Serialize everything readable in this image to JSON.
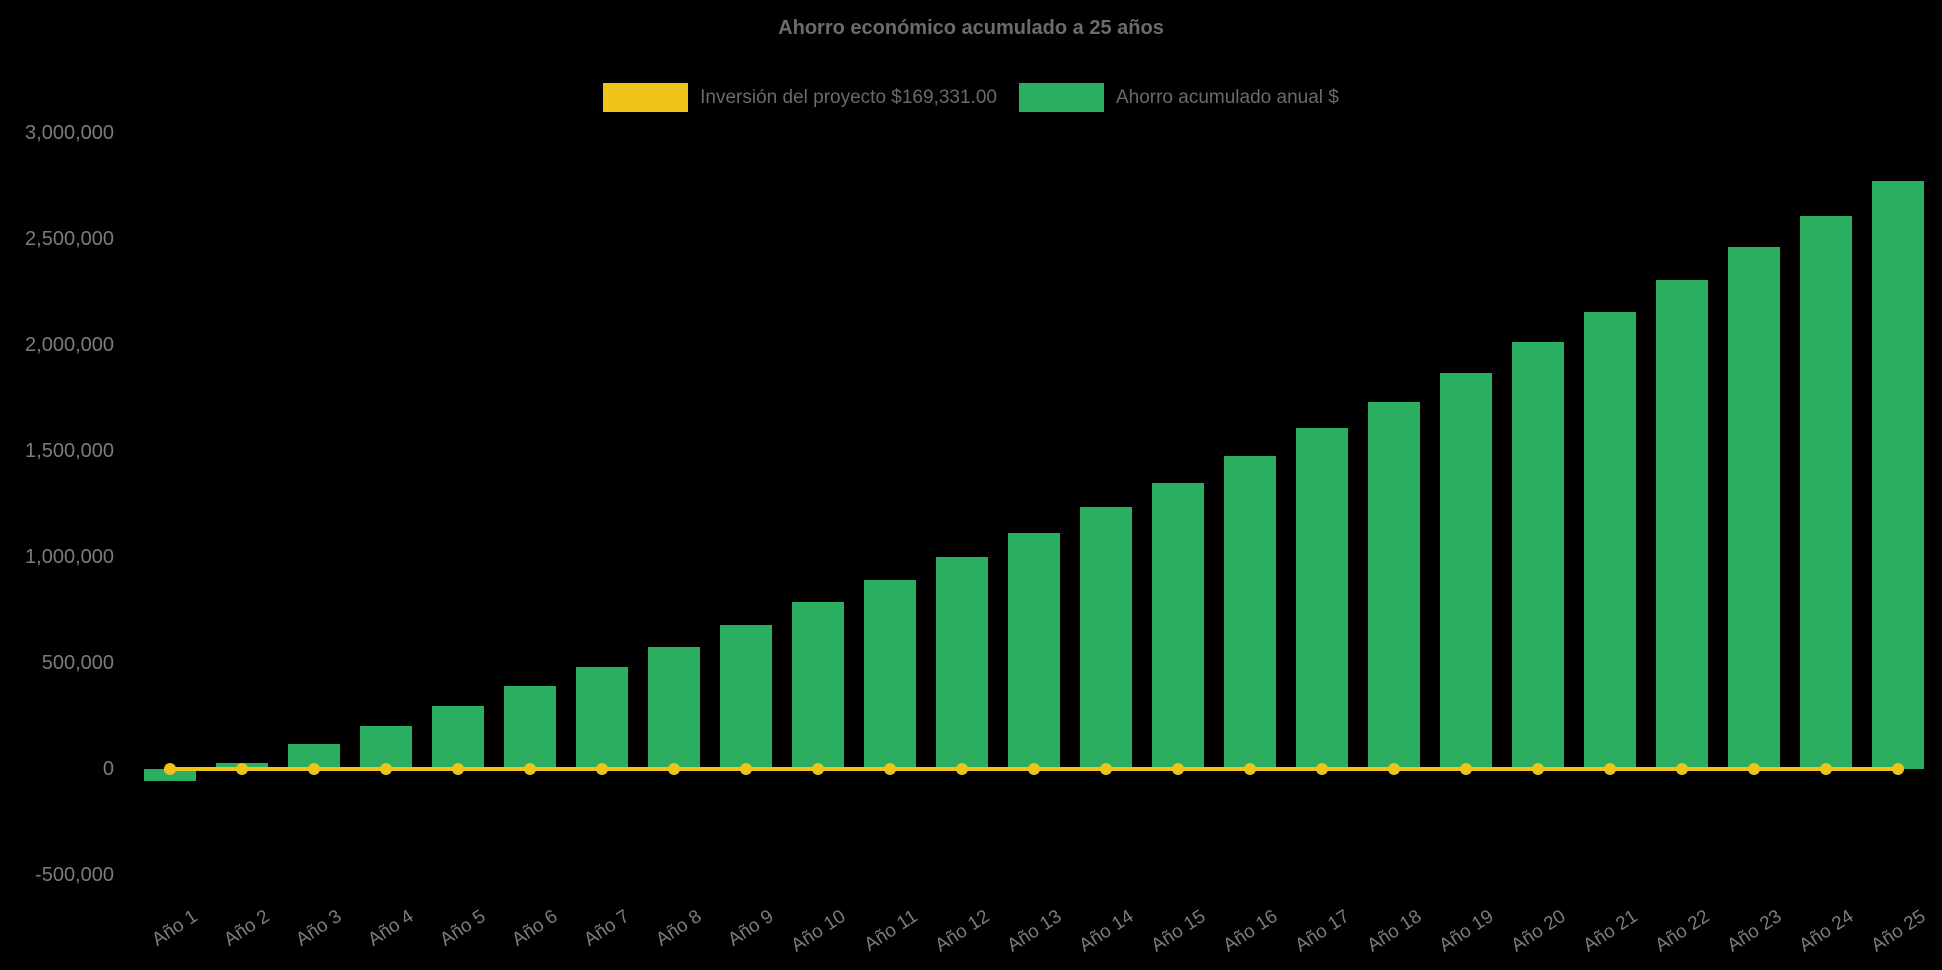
{
  "title": "Ahorro económico acumulado a 25 años",
  "colors": {
    "background": "#000000",
    "bar_green": "#2bae60",
    "line_yellow": "#efc31a",
    "title_text": "#6c6c6c",
    "legend_text": "#6a6a6a",
    "tick_text": "#7b7b7b"
  },
  "legend": [
    {
      "label": "Inversión del proyecto $169,331.00",
      "color": "#efc31a",
      "series": "line"
    },
    {
      "label": "Ahorro acumulado anual $",
      "color": "#2bae60",
      "series": "bar"
    }
  ],
  "chart_data": {
    "type": "bar",
    "title": "Ahorro económico acumulado a 25 años",
    "xlabel": "",
    "ylabel": "",
    "categories": [
      "Año 1",
      "Año 2",
      "Año 3",
      "Año 4",
      "Año 5",
      "Año 6",
      "Año 7",
      "Año 8",
      "Año 9",
      "Año 10",
      "Año 11",
      "Año 12",
      "Año 13",
      "Año 14",
      "Año 15",
      "Año 16",
      "Año 17",
      "Año 18",
      "Año 19",
      "Año 20",
      "Año 21",
      "Año 22",
      "Año 23",
      "Año 24",
      "Año 25"
    ],
    "series": [
      {
        "name": "Ahorro acumulado anual $",
        "type": "bar",
        "color": "#2bae60",
        "values": [
          -55000,
          30000,
          120000,
          205000,
          295000,
          390000,
          480000,
          575000,
          680000,
          790000,
          890000,
          1000000,
          1115000,
          1235000,
          1350000,
          1475000,
          1610000,
          1730000,
          1870000,
          2015000,
          2155000,
          2305000,
          2460000,
          2610000,
          2775000
        ]
      },
      {
        "name": "Inversión del proyecto $169,331.00",
        "type": "line",
        "color": "#efc31a",
        "marker": "circle",
        "values": [
          0,
          0,
          0,
          0,
          0,
          0,
          0,
          0,
          0,
          0,
          0,
          0,
          0,
          0,
          0,
          0,
          0,
          0,
          0,
          0,
          0,
          0,
          0,
          0,
          0
        ]
      }
    ],
    "ylim": [
      -500000,
      3000000
    ],
    "yticks": [
      3000000,
      2500000,
      2000000,
      1500000,
      1000000,
      500000,
      0,
      -500000
    ],
    "ytick_labels": [
      "3,000,000",
      "2,500,000",
      "2,000,000",
      "1,500,000",
      "1,000,000",
      "500,000",
      "0",
      "-500,000"
    ],
    "grid": false,
    "legend_position": "top",
    "x_label_rotation_deg": -33
  }
}
